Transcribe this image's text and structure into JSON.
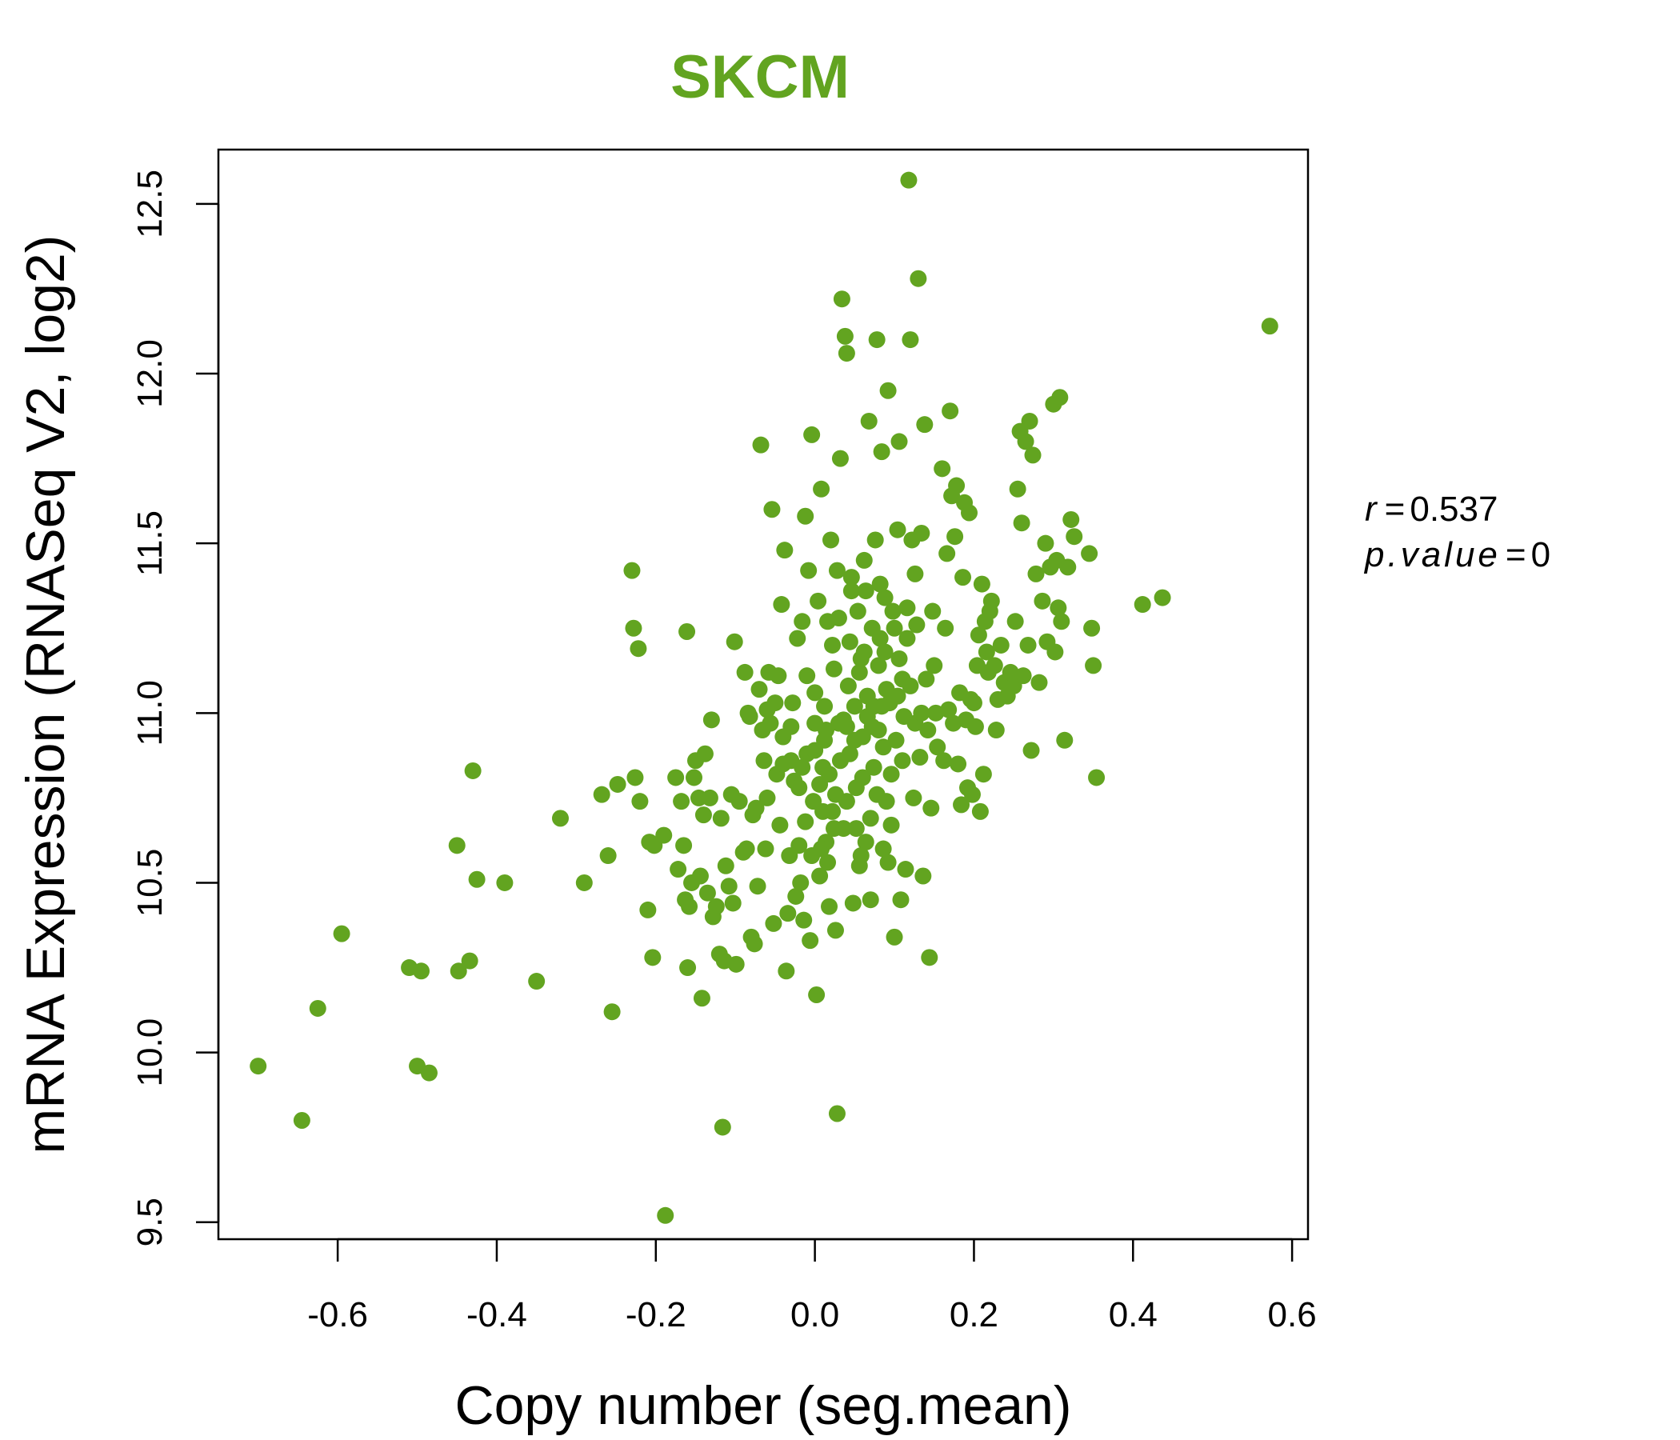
{
  "colors": {
    "accent": "#62a420",
    "axis": "#000000"
  },
  "chart_data": {
    "type": "scatter",
    "title": "SKCM",
    "xlabel": "Copy number (seg.mean)",
    "ylabel": "mRNA Expression (RNASeq V2, log2)",
    "xlim": [
      -0.75,
      0.62
    ],
    "ylim": [
      9.45,
      12.66
    ],
    "xticks": [
      -0.6,
      -0.4,
      -0.2,
      0.0,
      0.2,
      0.4,
      0.6
    ],
    "xtick_labels": [
      "-0.6",
      "-0.4",
      "-0.2",
      "0.0",
      "0.2",
      "0.4",
      "0.6"
    ],
    "yticks": [
      9.5,
      10.0,
      10.5,
      11.0,
      11.5,
      12.0,
      12.5
    ],
    "ytick_labels": [
      "9.5",
      "10.0",
      "10.5",
      "11.0",
      "11.5",
      "12.0",
      "12.5"
    ],
    "stats": {
      "r_label": "r",
      "r_value": "0.537",
      "p_label": "p.value",
      "p_value": "0"
    },
    "points": [
      [
        -0.7,
        9.96
      ],
      [
        -0.645,
        9.8
      ],
      [
        -0.625,
        10.13
      ],
      [
        -0.595,
        10.35
      ],
      [
        -0.51,
        10.25
      ],
      [
        -0.5,
        9.96
      ],
      [
        -0.495,
        10.24
      ],
      [
        -0.485,
        9.94
      ],
      [
        -0.45,
        10.61
      ],
      [
        -0.448,
        10.24
      ],
      [
        -0.434,
        10.27
      ],
      [
        -0.43,
        10.83
      ],
      [
        -0.425,
        10.51
      ],
      [
        -0.39,
        10.5
      ],
      [
        -0.35,
        10.21
      ],
      [
        -0.32,
        10.69
      ],
      [
        -0.29,
        10.5
      ],
      [
        -0.268,
        10.76
      ],
      [
        -0.26,
        10.58
      ],
      [
        -0.255,
        10.12
      ],
      [
        -0.248,
        10.79
      ],
      [
        -0.23,
        11.42
      ],
      [
        -0.228,
        11.25
      ],
      [
        -0.226,
        10.81
      ],
      [
        -0.222,
        11.19
      ],
      [
        -0.22,
        10.74
      ],
      [
        -0.21,
        10.42
      ],
      [
        -0.208,
        10.62
      ],
      [
        -0.204,
        10.28
      ],
      [
        -0.202,
        10.61
      ],
      [
        -0.19,
        10.64
      ],
      [
        -0.188,
        9.52
      ],
      [
        -0.175,
        10.81
      ],
      [
        -0.172,
        10.54
      ],
      [
        -0.168,
        10.74
      ],
      [
        -0.165,
        10.61
      ],
      [
        -0.163,
        10.45
      ],
      [
        -0.161,
        11.24
      ],
      [
        -0.16,
        10.25
      ],
      [
        -0.158,
        10.43
      ],
      [
        -0.155,
        10.5
      ],
      [
        -0.152,
        10.81
      ],
      [
        -0.15,
        10.86
      ],
      [
        -0.146,
        10.75
      ],
      [
        -0.144,
        10.52
      ],
      [
        -0.142,
        10.16
      ],
      [
        -0.14,
        10.7
      ],
      [
        -0.138,
        10.88
      ],
      [
        -0.135,
        10.47
      ],
      [
        -0.132,
        10.75
      ],
      [
        -0.13,
        10.98
      ],
      [
        -0.128,
        10.4
      ],
      [
        -0.124,
        10.43
      ],
      [
        -0.12,
        10.29
      ],
      [
        -0.118,
        10.69
      ],
      [
        -0.116,
        9.78
      ],
      [
        -0.114,
        10.27
      ],
      [
        -0.112,
        10.55
      ],
      [
        -0.108,
        10.49
      ],
      [
        -0.105,
        10.76
      ],
      [
        -0.103,
        10.44
      ],
      [
        -0.101,
        11.21
      ],
      [
        -0.099,
        10.26
      ],
      [
        -0.095,
        10.74
      ],
      [
        -0.09,
        10.59
      ],
      [
        -0.088,
        11.12
      ],
      [
        -0.086,
        10.6
      ],
      [
        -0.084,
        11.0
      ],
      [
        -0.082,
        10.99
      ],
      [
        -0.08,
        10.34
      ],
      [
        -0.078,
        10.7
      ],
      [
        -0.076,
        10.32
      ],
      [
        -0.074,
        10.72
      ],
      [
        -0.072,
        10.49
      ],
      [
        -0.07,
        11.07
      ],
      [
        -0.068,
        11.79
      ],
      [
        -0.066,
        10.95
      ],
      [
        -0.064,
        10.86
      ],
      [
        -0.062,
        10.6
      ],
      [
        -0.06,
        10.75
      ],
      [
        -0.058,
        11.12
      ],
      [
        -0.056,
        10.97
      ],
      [
        -0.054,
        11.6
      ],
      [
        -0.052,
        10.38
      ],
      [
        -0.05,
        11.03
      ],
      [
        -0.048,
        10.82
      ],
      [
        -0.046,
        11.11
      ],
      [
        -0.044,
        10.67
      ],
      [
        -0.042,
        11.32
      ],
      [
        -0.04,
        10.85
      ],
      [
        -0.038,
        11.48
      ],
      [
        -0.036,
        10.24
      ],
      [
        -0.034,
        10.41
      ],
      [
        -0.032,
        10.58
      ],
      [
        -0.03,
        10.96
      ],
      [
        -0.028,
        11.03
      ],
      [
        -0.026,
        10.8
      ],
      [
        -0.024,
        10.46
      ],
      [
        -0.022,
        11.22
      ],
      [
        -0.02,
        10.61
      ],
      [
        -0.018,
        10.5
      ],
      [
        -0.016,
        11.27
      ],
      [
        -0.014,
        10.39
      ],
      [
        -0.012,
        11.58
      ],
      [
        -0.01,
        10.88
      ],
      [
        -0.008,
        11.42
      ],
      [
        -0.006,
        10.33
      ],
      [
        -0.004,
        11.82
      ],
      [
        -0.002,
        10.74
      ],
      [
        0.0,
        10.97
      ],
      [
        0.002,
        10.17
      ],
      [
        0.004,
        11.33
      ],
      [
        0.006,
        10.52
      ],
      [
        0.008,
        11.66
      ],
      [
        0.01,
        10.84
      ],
      [
        0.012,
        11.02
      ],
      [
        0.014,
        10.62
      ],
      [
        0.016,
        11.27
      ],
      [
        0.018,
        10.43
      ],
      [
        0.02,
        11.51
      ],
      [
        0.022,
        10.71
      ],
      [
        0.024,
        11.13
      ],
      [
        0.026,
        10.36
      ],
      [
        0.028,
        11.42
      ],
      [
        0.028,
        9.82
      ],
      [
        0.03,
        10.97
      ],
      [
        0.032,
        11.75
      ],
      [
        0.034,
        12.22
      ],
      [
        0.036,
        10.66
      ],
      [
        0.038,
        12.11
      ],
      [
        0.04,
        12.06
      ],
      [
        0.042,
        11.08
      ],
      [
        0.044,
        10.88
      ],
      [
        0.046,
        11.4
      ],
      [
        0.048,
        10.44
      ],
      [
        0.05,
        11.02
      ],
      [
        0.052,
        10.78
      ],
      [
        0.054,
        11.3
      ],
      [
        0.056,
        10.55
      ],
      [
        0.058,
        11.16
      ],
      [
        0.06,
        10.93
      ],
      [
        0.062,
        11.45
      ],
      [
        0.064,
        10.62
      ],
      [
        0.066,
        11.05
      ],
      [
        0.068,
        11.86
      ],
      [
        0.07,
        10.45
      ],
      [
        0.072,
        11.25
      ],
      [
        0.074,
        10.84
      ],
      [
        0.076,
        11.51
      ],
      [
        0.078,
        12.1
      ],
      [
        0.08,
        10.95
      ],
      [
        0.082,
        11.38
      ],
      [
        0.084,
        11.77
      ],
      [
        0.086,
        10.6
      ],
      [
        0.088,
        11.18
      ],
      [
        0.09,
        10.74
      ],
      [
        0.092,
        11.95
      ],
      [
        0.094,
        11.03
      ],
      [
        0.096,
        10.67
      ],
      [
        0.098,
        11.3
      ],
      [
        0.1,
        10.34
      ],
      [
        0.102,
        10.92
      ],
      [
        0.104,
        11.54
      ],
      [
        0.106,
        11.8
      ],
      [
        0.108,
        10.45
      ],
      [
        0.11,
        11.1
      ],
      [
        0.112,
        10.99
      ],
      [
        0.114,
        10.54
      ],
      [
        0.116,
        11.22
      ],
      [
        0.118,
        12.57
      ],
      [
        0.12,
        12.1
      ],
      [
        0.122,
        11.51
      ],
      [
        0.124,
        10.75
      ],
      [
        0.126,
        11.41
      ],
      [
        0.128,
        11.26
      ],
      [
        0.13,
        12.28
      ],
      [
        0.132,
        10.87
      ],
      [
        0.134,
        11.53
      ],
      [
        0.136,
        10.52
      ],
      [
        0.138,
        11.85
      ],
      [
        0.14,
        11.1
      ],
      [
        0.142,
        10.95
      ],
      [
        0.144,
        10.28
      ],
      [
        0.146,
        10.72
      ],
      [
        0.148,
        11.3
      ],
      [
        0.15,
        11.14
      ],
      [
        0.152,
        11.0
      ],
      [
        0.154,
        10.9
      ],
      [
        0.16,
        11.72
      ],
      [
        0.162,
        10.86
      ],
      [
        0.164,
        11.25
      ],
      [
        0.166,
        11.47
      ],
      [
        0.168,
        11.01
      ],
      [
        0.17,
        11.89
      ],
      [
        0.172,
        11.64
      ],
      [
        0.174,
        10.97
      ],
      [
        0.176,
        11.52
      ],
      [
        0.178,
        11.67
      ],
      [
        0.18,
        10.85
      ],
      [
        0.182,
        11.06
      ],
      [
        0.184,
        10.73
      ],
      [
        0.186,
        11.4
      ],
      [
        0.188,
        11.62
      ],
      [
        0.19,
        10.98
      ],
      [
        0.192,
        10.78
      ],
      [
        0.194,
        11.59
      ],
      [
        0.196,
        11.04
      ],
      [
        0.198,
        10.76
      ],
      [
        0.2,
        11.03
      ],
      [
        0.202,
        10.96
      ],
      [
        0.204,
        11.14
      ],
      [
        0.206,
        11.23
      ],
      [
        0.208,
        10.71
      ],
      [
        0.21,
        11.38
      ],
      [
        0.212,
        10.82
      ],
      [
        0.214,
        11.27
      ],
      [
        0.216,
        11.18
      ],
      [
        0.218,
        11.12
      ],
      [
        0.22,
        11.3
      ],
      [
        0.222,
        11.33
      ],
      [
        0.226,
        11.14
      ],
      [
        0.228,
        10.95
      ],
      [
        0.23,
        11.04
      ],
      [
        0.234,
        11.2
      ],
      [
        0.238,
        11.09
      ],
      [
        0.242,
        11.05
      ],
      [
        0.246,
        11.12
      ],
      [
        0.25,
        11.08
      ],
      [
        0.252,
        11.27
      ],
      [
        0.255,
        11.66
      ],
      [
        0.258,
        11.83
      ],
      [
        0.26,
        11.56
      ],
      [
        0.262,
        11.11
      ],
      [
        0.265,
        11.8
      ],
      [
        0.268,
        11.2
      ],
      [
        0.27,
        11.86
      ],
      [
        0.272,
        10.89
      ],
      [
        0.274,
        11.76
      ],
      [
        0.278,
        11.41
      ],
      [
        0.282,
        11.09
      ],
      [
        0.286,
        11.33
      ],
      [
        0.29,
        11.5
      ],
      [
        0.292,
        11.21
      ],
      [
        0.296,
        11.43
      ],
      [
        0.3,
        11.91
      ],
      [
        0.302,
        11.18
      ],
      [
        0.304,
        11.45
      ],
      [
        0.306,
        11.31
      ],
      [
        0.308,
        11.93
      ],
      [
        0.31,
        11.27
      ],
      [
        0.314,
        10.92
      ],
      [
        0.318,
        11.43
      ],
      [
        0.322,
        11.57
      ],
      [
        0.326,
        11.52
      ],
      [
        0.345,
        11.47
      ],
      [
        0.348,
        11.25
      ],
      [
        0.35,
        11.14
      ],
      [
        0.354,
        10.81
      ],
      [
        0.412,
        11.32
      ],
      [
        0.437,
        11.34
      ],
      [
        0.572,
        12.14
      ],
      [
        -0.06,
        11.01
      ],
      [
        -0.04,
        10.93
      ],
      [
        -0.02,
        10.78
      ],
      [
        -0.01,
        11.11
      ],
      [
        0.0,
        10.89
      ],
      [
        0.006,
        10.79
      ],
      [
        0.01,
        10.71
      ],
      [
        0.014,
        10.95
      ],
      [
        0.018,
        10.82
      ],
      [
        0.022,
        11.2
      ],
      [
        0.026,
        10.76
      ],
      [
        0.032,
        10.86
      ],
      [
        0.036,
        10.98
      ],
      [
        0.04,
        10.74
      ],
      [
        0.044,
        11.21
      ],
      [
        0.05,
        10.92
      ],
      [
        0.056,
        11.12
      ],
      [
        0.06,
        10.81
      ],
      [
        0.066,
        10.99
      ],
      [
        0.07,
        10.69
      ],
      [
        0.074,
        11.02
      ],
      [
        0.08,
        11.14
      ],
      [
        0.086,
        10.9
      ],
      [
        0.09,
        11.07
      ],
      [
        0.096,
        10.82
      ],
      [
        0.1,
        11.25
      ],
      [
        0.104,
        11.05
      ],
      [
        0.11,
        10.86
      ],
      [
        0.116,
        11.31
      ],
      [
        0.12,
        11.08
      ],
      [
        0.126,
        10.97
      ],
      [
        -0.012,
        10.68
      ],
      [
        -0.004,
        10.58
      ],
      [
        0.008,
        10.6
      ],
      [
        0.016,
        10.56
      ],
      [
        0.024,
        10.66
      ],
      [
        0.03,
        11.28
      ],
      [
        0.046,
        11.36
      ],
      [
        0.058,
        10.58
      ],
      [
        0.062,
        11.18
      ],
      [
        0.072,
        10.96
      ],
      [
        0.078,
        10.76
      ],
      [
        0.084,
        11.02
      ],
      [
        0.092,
        10.56
      ],
      [
        -0.03,
        10.86
      ],
      [
        -0.016,
        10.84
      ],
      [
        0.0,
        11.06
      ],
      [
        0.012,
        10.92
      ],
      [
        0.04,
        10.96
      ],
      [
        0.052,
        10.66
      ],
      [
        0.064,
        11.36
      ],
      [
        0.082,
        11.22
      ],
      [
        0.088,
        11.34
      ],
      [
        0.106,
        11.16
      ],
      [
        0.134,
        11.0
      ]
    ]
  }
}
